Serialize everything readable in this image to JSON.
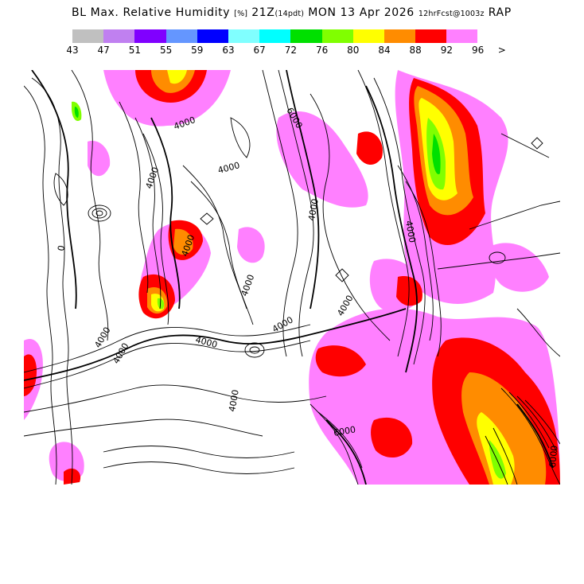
{
  "header": {
    "title_main": "BL Max. Relative Humidity",
    "title_units": "[%]",
    "title_valid": "21Z",
    "title_pdt": "(14pdt)",
    "title_date": "MON 13 Apr 2026",
    "title_fcst": "12hrFcst@1003z",
    "title_model": "RAP"
  },
  "legend": {
    "colors": [
      "#c0c0c0",
      "#c080f0",
      "#8000ff",
      "#6496ff",
      "#0000ff",
      "#80ffff",
      "#00ffff",
      "#00e000",
      "#80ff00",
      "#ffff00",
      "#ff8c00",
      "#ff0000",
      "#ff80ff"
    ],
    "labels": [
      "43",
      "47",
      "51",
      "55",
      "59",
      "63",
      "67",
      "72",
      "76",
      "80",
      "84",
      "88",
      "92",
      "96"
    ],
    "more_symbol": ">"
  },
  "map": {
    "contour_labels": [
      "4000",
      "6000",
      "4000",
      "4000",
      "4000",
      "4000",
      "4000",
      "4000",
      "4000",
      "4000",
      "4000",
      "4000",
      "4000",
      "4000",
      "6000",
      "6000",
      "0"
    ]
  }
}
